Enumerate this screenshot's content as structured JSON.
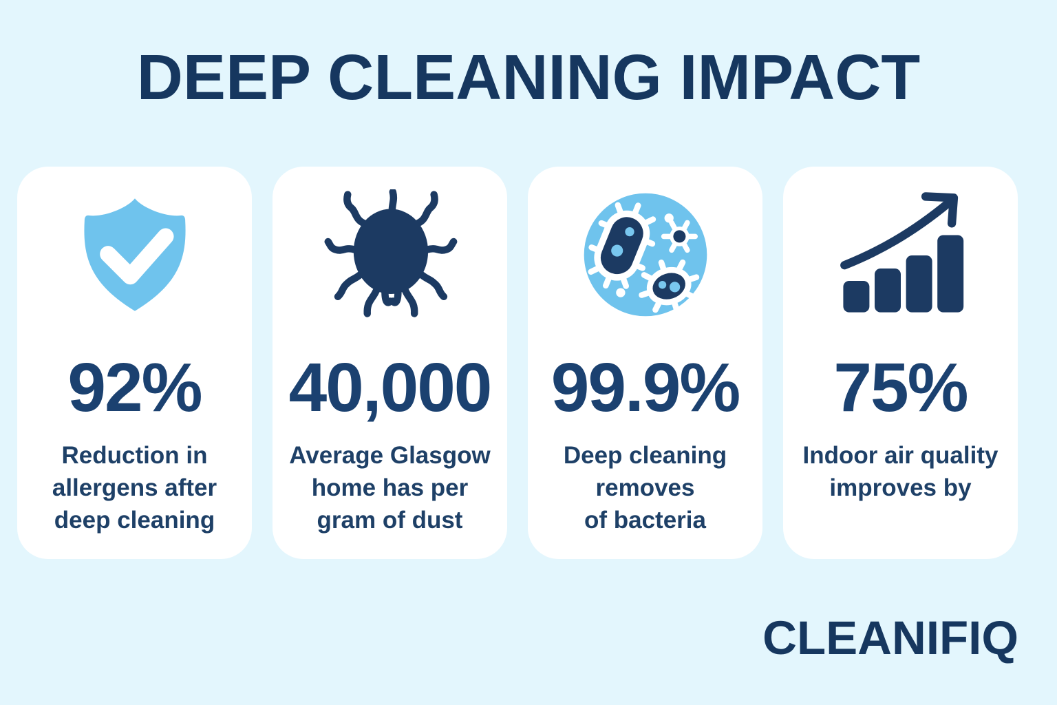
{
  "title": "DEEP CLEANING IMPACT",
  "brand": "CLEANIFIQ",
  "colors": {
    "background": "#E3F6FD",
    "card": "#FFFFFF",
    "title_navy": "#16375F",
    "stat_navy": "#1B4170",
    "label_navy": "#1E4067",
    "icon_navy": "#1C3A62",
    "accent_blue": "#6FC3ED",
    "inner_dot_blue": "#79C7EF"
  },
  "cards": [
    {
      "icon": "shield-check-icon",
      "value": "92%",
      "label_lines": [
        "Reduction in",
        "allergens after",
        "deep cleaning"
      ]
    },
    {
      "icon": "dust-mite-icon",
      "value": "40,000",
      "label_lines": [
        "Average Glasgow",
        "home has per",
        "gram of dust"
      ]
    },
    {
      "icon": "bacteria-icon",
      "value": "99.9%",
      "label_lines": [
        "Deep cleaning",
        "removes",
        "of bacteria"
      ]
    },
    {
      "icon": "bar-chart-growth-icon",
      "value": "75%",
      "label_lines": [
        "Indoor air quality",
        "improves by"
      ]
    }
  ],
  "chart_data": {
    "type": "table",
    "title": "DEEP CLEANING IMPACT",
    "stats": [
      {
        "value": "92%",
        "description": "Reduction in allergens after deep cleaning"
      },
      {
        "value": "40,000",
        "description": "Average Glasgow home has per gram of dust"
      },
      {
        "value": "99.9%",
        "description": "Deep cleaning removes of bacteria"
      },
      {
        "value": "75%",
        "description": "Indoor air quality improves by"
      }
    ]
  }
}
